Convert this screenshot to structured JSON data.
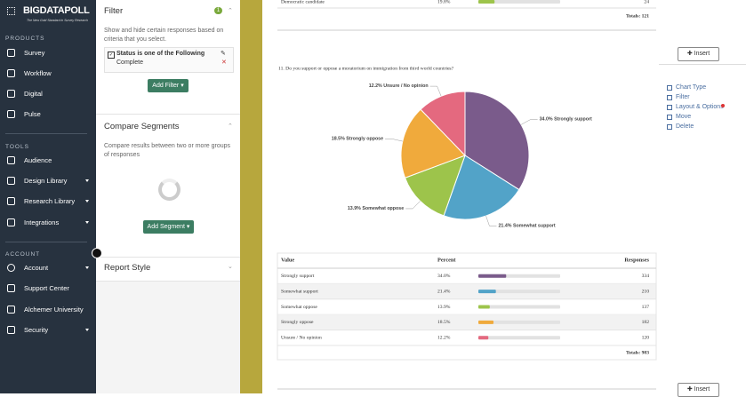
{
  "sidebar": {
    "logo": "BIGDATAPOLL",
    "tagline": "The New Gold Standard in Survey Research",
    "sections": [
      {
        "title": "PRODUCTS",
        "items": [
          "Survey",
          "Workflow",
          "Digital",
          "Pulse"
        ]
      },
      {
        "title": "TOOLS",
        "items": [
          "Audience",
          "Design Library",
          "Research Library",
          "Integrations"
        ]
      },
      {
        "title": "ACCOUNT",
        "items": [
          "Account",
          "Support Center",
          "Alchemer University",
          "Security"
        ]
      }
    ]
  },
  "filter_panel": {
    "title": "Filter",
    "badge": "1",
    "description": "Show and hide certain responses based on criteria that you select.",
    "rule": "Status is one of the Following",
    "rule_value": "Complete",
    "button": "Add Filter"
  },
  "segments_panel": {
    "title": "Compare Segments",
    "description": "Compare results between two or more groups of responses",
    "button": "Add Segment"
  },
  "report_style": {
    "title": "Report Style"
  },
  "previous_question": {
    "label": "Democratic candidate",
    "percent": 19.8,
    "percent_label": "19.8%",
    "responses": 24,
    "total": "Totals: 121"
  },
  "insert_button": "Insert",
  "question": "11. Do you support or oppose a moratorium on immigration from third world countries?",
  "chart_data": {
    "type": "pie",
    "categories": [
      "Strongly support",
      "Somewhat support",
      "Somewhat oppose",
      "Strongly oppose",
      "Unsure / No opinion"
    ],
    "values": [
      34.0,
      21.4,
      13.9,
      18.5,
      12.2
    ],
    "value_labels": [
      "34.0%",
      "21.4%",
      "13.9%",
      "18.5%",
      "12.2%"
    ],
    "colors": [
      "#7a5b8b",
      "#52a3c8",
      "#9dc44b",
      "#f0aa3c",
      "#e4697f"
    ]
  },
  "table": {
    "header": [
      "Value",
      "Percent",
      "Responses"
    ],
    "rows": [
      [
        "Strongly support",
        "34.0%",
        "334"
      ],
      [
        "Somewhat support",
        "21.4%",
        "210"
      ],
      [
        "Somewhat oppose",
        "13.9%",
        "137"
      ],
      [
        "Strongly oppose",
        "18.5%",
        "182"
      ],
      [
        "Unsure / No opinion",
        "12.2%",
        "120"
      ]
    ],
    "total": "Totals: 983"
  },
  "actions": [
    "Chart Type",
    "Filter",
    "Layout & Options",
    "Move",
    "Delete"
  ]
}
